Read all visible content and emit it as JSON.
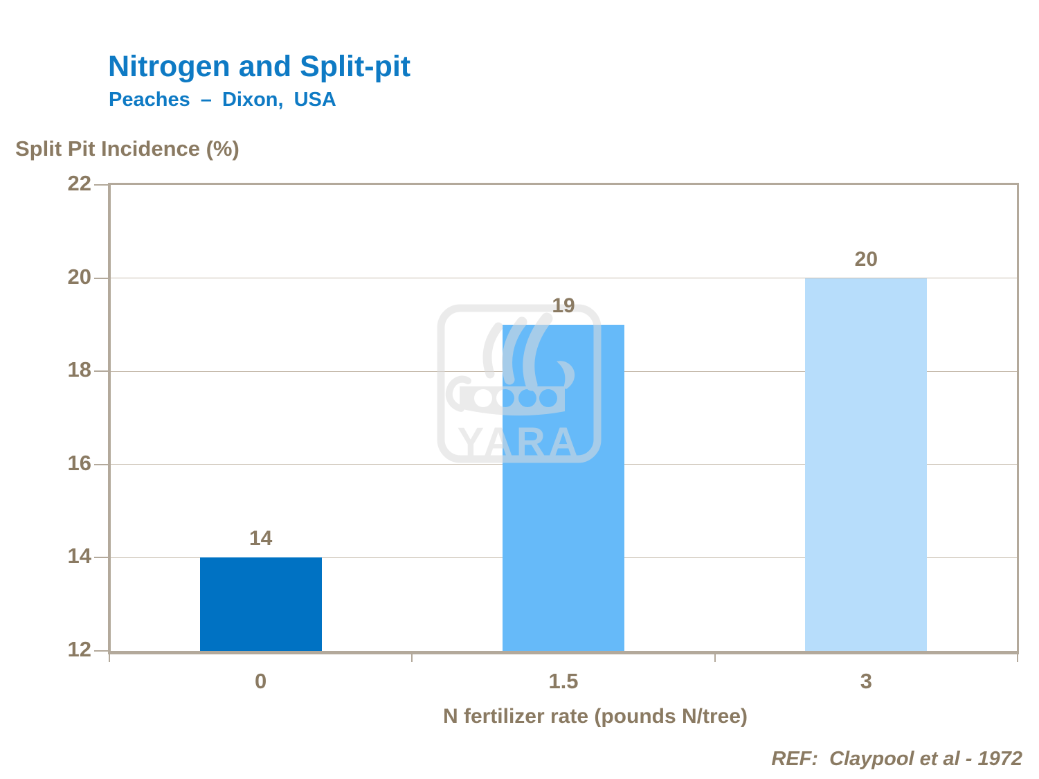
{
  "slide": {
    "title": "Nitrogen and Split-pit",
    "subtitle": "Peaches – Dixon, USA",
    "reference": "REF:  Claypool et al - 1972"
  },
  "chart_data": {
    "type": "bar",
    "title": "Nitrogen and Split-pit — Peaches – Dixon, USA",
    "y_axis_title": "Split Pit Incidence (%)",
    "x_axis_title": "N fertilizer rate (pounds N/tree)",
    "categories": [
      "0",
      "1.5",
      "3"
    ],
    "values": [
      14,
      19,
      20
    ],
    "data_labels": [
      "14",
      "19",
      "20"
    ],
    "bar_colors": [
      "#0072c3",
      "#66baf9",
      "#b7ddfb"
    ],
    "ylim": [
      12,
      22
    ],
    "y_ticks": [
      22,
      20,
      18,
      16,
      14,
      12
    ],
    "grid": true,
    "legend": "none"
  },
  "watermark": {
    "name": "yara-logo",
    "text": "YARA",
    "color": "#dcdcdc",
    "opacity": 0.55
  },
  "colors": {
    "title_blue": "#0e7ac4",
    "text_brown": "#8a7a62",
    "axis_line": "#b3a99b",
    "gridline": "#c7bcae",
    "background": "#ffffff"
  }
}
